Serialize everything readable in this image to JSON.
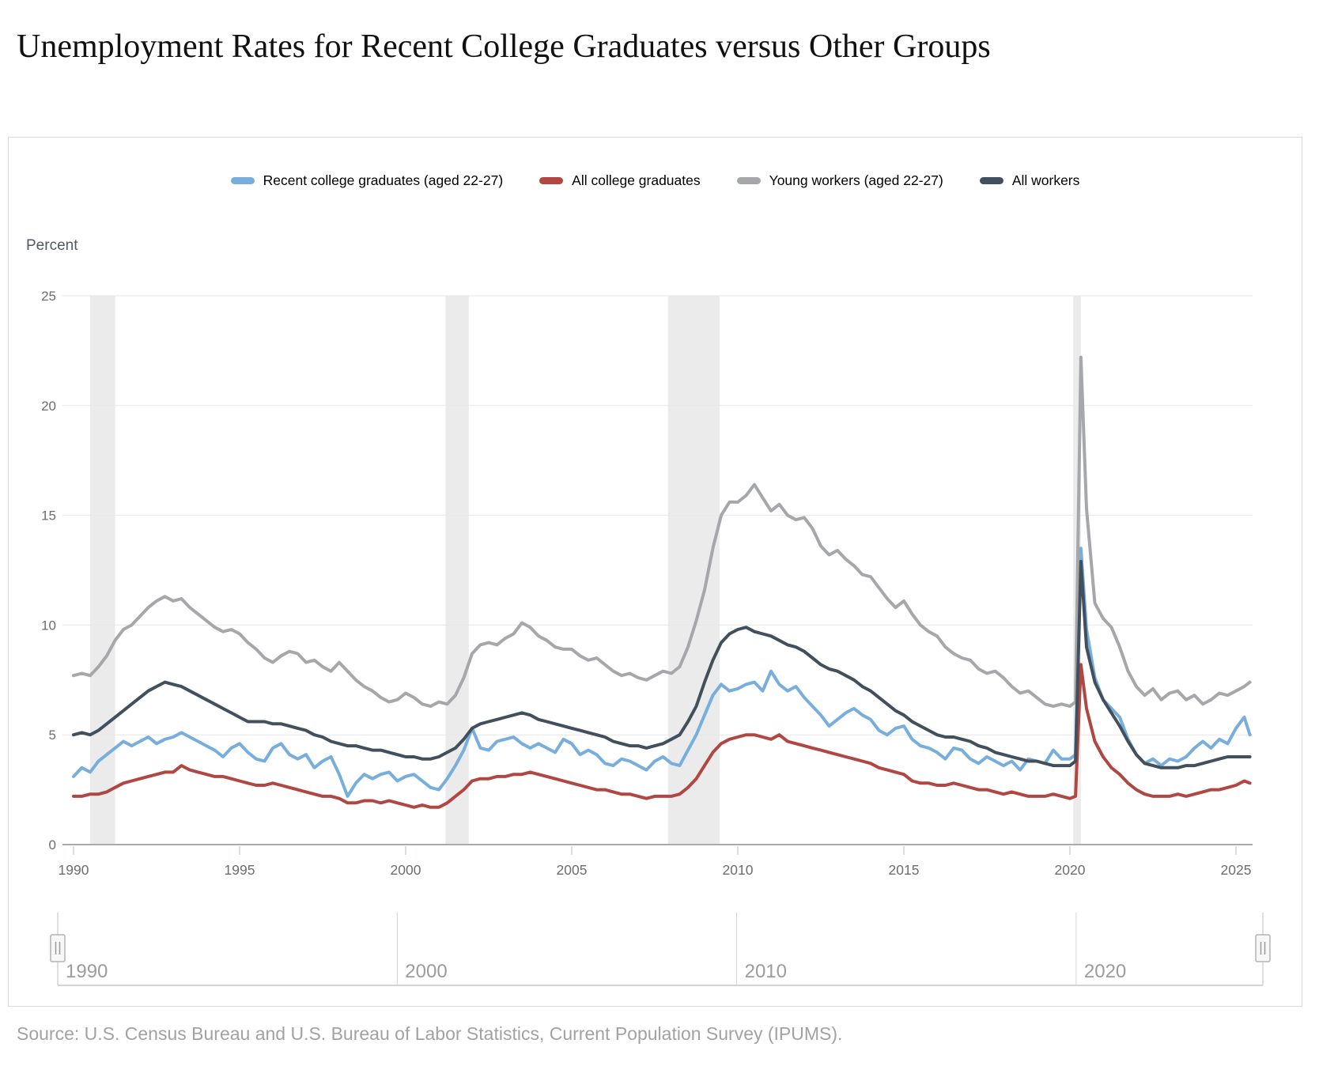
{
  "title": "Unemployment Rates for Recent College Graduates versus Other Groups",
  "source": "Source: U.S. Census Bureau and U.S. Bureau of Labor Statistics, Current Population Survey (IPUMS).",
  "colors": {
    "recent_grads": "#77aedb",
    "all_grads": "#b04742",
    "young_workers": "#a5a7aa",
    "all_workers": "#42505e",
    "gridline": "#e7e7e7",
    "axis_line": "#aaaaaa",
    "tick_mark": "#c9d4df",
    "axis_label": "#6d6d6d",
    "recession_band": "#ebebeb",
    "navigator_line": "#d4d4d4",
    "navigator_label": "#9c9c9c",
    "handle_fill": "#f7f7f7",
    "handle_border": "#b3b3b3",
    "handle_grip": "#999999"
  },
  "navigator": {
    "labels": [
      "1990",
      "2000",
      "2010",
      "2020"
    ],
    "tick_years": [
      1990,
      2000,
      2010,
      2020
    ],
    "range": [
      1990,
      2025.5
    ]
  },
  "chart_data": {
    "type": "line",
    "title": "Unemployment Rates for Recent College Graduates versus Other Groups",
    "xlabel": "",
    "ylabel": "Percent",
    "ylim": [
      0,
      25
    ],
    "yticks": [
      0,
      5,
      10,
      15,
      20,
      25
    ],
    "xticks": [
      1990,
      1995,
      2000,
      2005,
      2010,
      2015,
      2020,
      2025
    ],
    "x_range": [
      1990,
      2025.6
    ],
    "grid": true,
    "legend_position": "top",
    "recession_bands": [
      [
        1990.5,
        1991.25
      ],
      [
        2001.2,
        2001.9
      ],
      [
        2007.9,
        2009.45
      ],
      [
        2020.1,
        2020.33
      ]
    ],
    "x": [
      1990,
      1990.25,
      1990.5,
      1990.75,
      1991,
      1991.25,
      1991.5,
      1991.75,
      1992,
      1992.25,
      1992.5,
      1992.75,
      1993,
      1993.25,
      1993.5,
      1993.75,
      1994,
      1994.25,
      1994.5,
      1994.75,
      1995,
      1995.25,
      1995.5,
      1995.75,
      1996,
      1996.25,
      1996.5,
      1996.75,
      1997,
      1997.25,
      1997.5,
      1997.75,
      1998,
      1998.25,
      1998.5,
      1998.75,
      1999,
      1999.25,
      1999.5,
      1999.75,
      2000,
      2000.25,
      2000.5,
      2000.75,
      2001,
      2001.25,
      2001.5,
      2001.75,
      2002,
      2002.25,
      2002.5,
      2002.75,
      2003,
      2003.25,
      2003.5,
      2003.75,
      2004,
      2004.25,
      2004.5,
      2004.75,
      2005,
      2005.25,
      2005.5,
      2005.75,
      2006,
      2006.25,
      2006.5,
      2006.75,
      2007,
      2007.25,
      2007.5,
      2007.75,
      2008,
      2008.25,
      2008.5,
      2008.75,
      2009,
      2009.25,
      2009.5,
      2009.75,
      2010,
      2010.25,
      2010.5,
      2010.75,
      2011,
      2011.25,
      2011.5,
      2011.75,
      2012,
      2012.25,
      2012.5,
      2012.75,
      2013,
      2013.25,
      2013.5,
      2013.75,
      2014,
      2014.25,
      2014.5,
      2014.75,
      2015,
      2015.25,
      2015.5,
      2015.75,
      2016,
      2016.25,
      2016.5,
      2016.75,
      2017,
      2017.25,
      2017.5,
      2017.75,
      2018,
      2018.25,
      2018.5,
      2018.75,
      2019,
      2019.25,
      2019.5,
      2019.75,
      2020,
      2020.17,
      2020.33,
      2020.5,
      2020.75,
      2021,
      2021.25,
      2021.5,
      2021.75,
      2022,
      2022.25,
      2022.5,
      2022.75,
      2023,
      2023.25,
      2023.5,
      2023.75,
      2024,
      2024.25,
      2024.5,
      2024.75,
      2025,
      2025.25,
      2025.42
    ],
    "series": [
      {
        "name": "Recent college graduates (aged 22-27)",
        "color": "#77aedb",
        "values": [
          3.1,
          3.5,
          3.3,
          3.8,
          4.1,
          4.4,
          4.7,
          4.5,
          4.7,
          4.9,
          4.6,
          4.8,
          4.9,
          5.1,
          4.9,
          4.7,
          4.5,
          4.3,
          4.0,
          4.4,
          4.6,
          4.2,
          3.9,
          3.8,
          4.4,
          4.6,
          4.1,
          3.9,
          4.1,
          3.5,
          3.8,
          4.0,
          3.2,
          2.2,
          2.8,
          3.2,
          3.0,
          3.2,
          3.3,
          2.9,
          3.1,
          3.2,
          2.9,
          2.6,
          2.5,
          3.0,
          3.6,
          4.3,
          5.3,
          4.4,
          4.3,
          4.7,
          4.8,
          4.9,
          4.6,
          4.4,
          4.6,
          4.4,
          4.2,
          4.8,
          4.6,
          4.1,
          4.3,
          4.1,
          3.7,
          3.6,
          3.9,
          3.8,
          3.6,
          3.4,
          3.8,
          4.0,
          3.7,
          3.6,
          4.3,
          5.0,
          5.9,
          6.8,
          7.3,
          7.0,
          7.1,
          7.3,
          7.4,
          7.0,
          7.9,
          7.3,
          7.0,
          7.2,
          6.7,
          6.3,
          5.9,
          5.4,
          5.7,
          6.0,
          6.2,
          5.9,
          5.7,
          5.2,
          5.0,
          5.3,
          5.4,
          4.8,
          4.5,
          4.4,
          4.2,
          3.9,
          4.4,
          4.3,
          3.9,
          3.7,
          4.0,
          3.8,
          3.6,
          3.8,
          3.4,
          3.9,
          3.8,
          3.7,
          4.3,
          3.9,
          3.9,
          4.1,
          13.5,
          9.8,
          7.6,
          6.6,
          6.2,
          5.8,
          4.8,
          4.1,
          3.7,
          3.9,
          3.6,
          3.9,
          3.8,
          4.0,
          4.4,
          4.7,
          4.4,
          4.8,
          4.6,
          5.3,
          5.8,
          5.0
        ]
      },
      {
        "name": "All college graduates",
        "color": "#b04742",
        "values": [
          2.2,
          2.2,
          2.3,
          2.3,
          2.4,
          2.6,
          2.8,
          2.9,
          3.0,
          3.1,
          3.2,
          3.3,
          3.3,
          3.6,
          3.4,
          3.3,
          3.2,
          3.1,
          3.1,
          3.0,
          2.9,
          2.8,
          2.7,
          2.7,
          2.8,
          2.7,
          2.6,
          2.5,
          2.4,
          2.3,
          2.2,
          2.2,
          2.1,
          1.9,
          1.9,
          2.0,
          2.0,
          1.9,
          2.0,
          1.9,
          1.8,
          1.7,
          1.8,
          1.7,
          1.7,
          1.9,
          2.2,
          2.5,
          2.9,
          3.0,
          3.0,
          3.1,
          3.1,
          3.2,
          3.2,
          3.3,
          3.2,
          3.1,
          3.0,
          2.9,
          2.8,
          2.7,
          2.6,
          2.5,
          2.5,
          2.4,
          2.3,
          2.3,
          2.2,
          2.1,
          2.2,
          2.2,
          2.2,
          2.3,
          2.6,
          3.0,
          3.6,
          4.2,
          4.6,
          4.8,
          4.9,
          5.0,
          5.0,
          4.9,
          4.8,
          5.0,
          4.7,
          4.6,
          4.5,
          4.4,
          4.3,
          4.2,
          4.1,
          4.0,
          3.9,
          3.8,
          3.7,
          3.5,
          3.4,
          3.3,
          3.2,
          2.9,
          2.8,
          2.8,
          2.7,
          2.7,
          2.8,
          2.7,
          2.6,
          2.5,
          2.5,
          2.4,
          2.3,
          2.4,
          2.3,
          2.2,
          2.2,
          2.2,
          2.3,
          2.2,
          2.1,
          2.2,
          8.2,
          6.2,
          4.7,
          4.0,
          3.5,
          3.2,
          2.8,
          2.5,
          2.3,
          2.2,
          2.2,
          2.2,
          2.3,
          2.2,
          2.3,
          2.4,
          2.5,
          2.5,
          2.6,
          2.7,
          2.9,
          2.8
        ]
      },
      {
        "name": "Young workers (aged 22-27)",
        "color": "#a5a7aa",
        "values": [
          7.7,
          7.8,
          7.7,
          8.1,
          8.6,
          9.3,
          9.8,
          10.0,
          10.4,
          10.8,
          11.1,
          11.3,
          11.1,
          11.2,
          10.8,
          10.5,
          10.2,
          9.9,
          9.7,
          9.8,
          9.6,
          9.2,
          8.9,
          8.5,
          8.3,
          8.6,
          8.8,
          8.7,
          8.3,
          8.4,
          8.1,
          7.9,
          8.3,
          7.9,
          7.5,
          7.2,
          7.0,
          6.7,
          6.5,
          6.6,
          6.9,
          6.7,
          6.4,
          6.3,
          6.5,
          6.4,
          6.8,
          7.6,
          8.7,
          9.1,
          9.2,
          9.1,
          9.4,
          9.6,
          10.1,
          9.9,
          9.5,
          9.3,
          9.0,
          8.9,
          8.9,
          8.6,
          8.4,
          8.5,
          8.2,
          7.9,
          7.7,
          7.8,
          7.6,
          7.5,
          7.7,
          7.9,
          7.8,
          8.1,
          9.0,
          10.2,
          11.6,
          13.5,
          15.0,
          15.6,
          15.6,
          15.9,
          16.4,
          15.8,
          15.2,
          15.5,
          15.0,
          14.8,
          14.9,
          14.4,
          13.6,
          13.2,
          13.4,
          13.0,
          12.7,
          12.3,
          12.2,
          11.7,
          11.2,
          10.8,
          11.1,
          10.5,
          10.0,
          9.7,
          9.5,
          9.0,
          8.7,
          8.5,
          8.4,
          8.0,
          7.8,
          7.9,
          7.6,
          7.2,
          6.9,
          7.0,
          6.7,
          6.4,
          6.3,
          6.4,
          6.3,
          6.5,
          22.2,
          15.3,
          11.0,
          10.3,
          9.9,
          9.0,
          7.9,
          7.2,
          6.8,
          7.1,
          6.6,
          6.9,
          7.0,
          6.6,
          6.8,
          6.4,
          6.6,
          6.9,
          6.8,
          7.0,
          7.2,
          7.4
        ]
      },
      {
        "name": "All workers",
        "color": "#42505e",
        "values": [
          5.0,
          5.1,
          5.0,
          5.2,
          5.5,
          5.8,
          6.1,
          6.4,
          6.7,
          7.0,
          7.2,
          7.4,
          7.3,
          7.2,
          7.0,
          6.8,
          6.6,
          6.4,
          6.2,
          6.0,
          5.8,
          5.6,
          5.6,
          5.6,
          5.5,
          5.5,
          5.4,
          5.3,
          5.2,
          5.0,
          4.9,
          4.7,
          4.6,
          4.5,
          4.5,
          4.4,
          4.3,
          4.3,
          4.2,
          4.1,
          4.0,
          4.0,
          3.9,
          3.9,
          4.0,
          4.2,
          4.4,
          4.8,
          5.3,
          5.5,
          5.6,
          5.7,
          5.8,
          5.9,
          6.0,
          5.9,
          5.7,
          5.6,
          5.5,
          5.4,
          5.3,
          5.2,
          5.1,
          5.0,
          4.9,
          4.7,
          4.6,
          4.5,
          4.5,
          4.4,
          4.5,
          4.6,
          4.8,
          5.0,
          5.6,
          6.3,
          7.4,
          8.4,
          9.2,
          9.6,
          9.8,
          9.9,
          9.7,
          9.6,
          9.5,
          9.3,
          9.1,
          9.0,
          8.8,
          8.5,
          8.2,
          8.0,
          7.9,
          7.7,
          7.5,
          7.2,
          7.0,
          6.7,
          6.4,
          6.1,
          5.9,
          5.6,
          5.4,
          5.2,
          5.0,
          4.9,
          4.9,
          4.8,
          4.7,
          4.5,
          4.4,
          4.2,
          4.1,
          4.0,
          3.9,
          3.8,
          3.8,
          3.7,
          3.6,
          3.6,
          3.6,
          3.8,
          12.9,
          9.0,
          7.4,
          6.6,
          6.0,
          5.4,
          4.7,
          4.1,
          3.7,
          3.6,
          3.5,
          3.5,
          3.5,
          3.6,
          3.6,
          3.7,
          3.8,
          3.9,
          4.0,
          4.0,
          4.0,
          4.0
        ]
      }
    ]
  }
}
